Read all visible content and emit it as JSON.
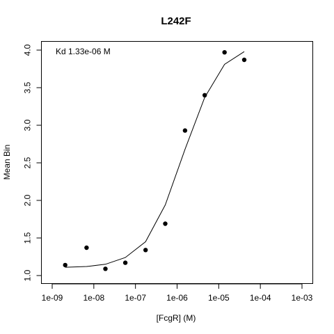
{
  "chart_data": {
    "type": "scatter",
    "title": "L242F",
    "xlabel": "[FcgR] (M)",
    "ylabel": "Mean Bin",
    "annotation": "Kd 1.33e-06 M",
    "x_scale": "log10",
    "xlim": [
      1e-09,
      0.001
    ],
    "ylim": [
      1.0,
      4.0
    ],
    "x_ticks": [
      "1e-09",
      "1e-08",
      "1e-07",
      "1e-06",
      "1e-05",
      "1e-04",
      "1e-03"
    ],
    "y_ticks": [
      "1.0",
      "1.5",
      "2.0",
      "2.5",
      "3.0",
      "3.5",
      "4.0"
    ],
    "grid": false,
    "series": [
      {
        "kind": "points",
        "x": [
          2.05e-09,
          6.7e-09,
          1.9e-08,
          5.7e-08,
          1.75e-07,
          5.2e-07,
          1.55e-06,
          4.6e-06,
          1.38e-05,
          4.1e-05
        ],
        "y": [
          1.14,
          1.37,
          1.09,
          1.17,
          1.34,
          1.69,
          2.93,
          3.4,
          3.97,
          3.87
        ]
      },
      {
        "kind": "fit-line",
        "x": [
          2.05e-09,
          6.7e-09,
          1.9e-08,
          5.7e-08,
          1.75e-07,
          5.2e-07,
          1.55e-06,
          4.6e-06,
          1.38e-05,
          4.1e-05
        ],
        "y": [
          1.11,
          1.12,
          1.15,
          1.24,
          1.45,
          1.94,
          2.68,
          3.37,
          3.81,
          3.98
        ]
      }
    ]
  }
}
